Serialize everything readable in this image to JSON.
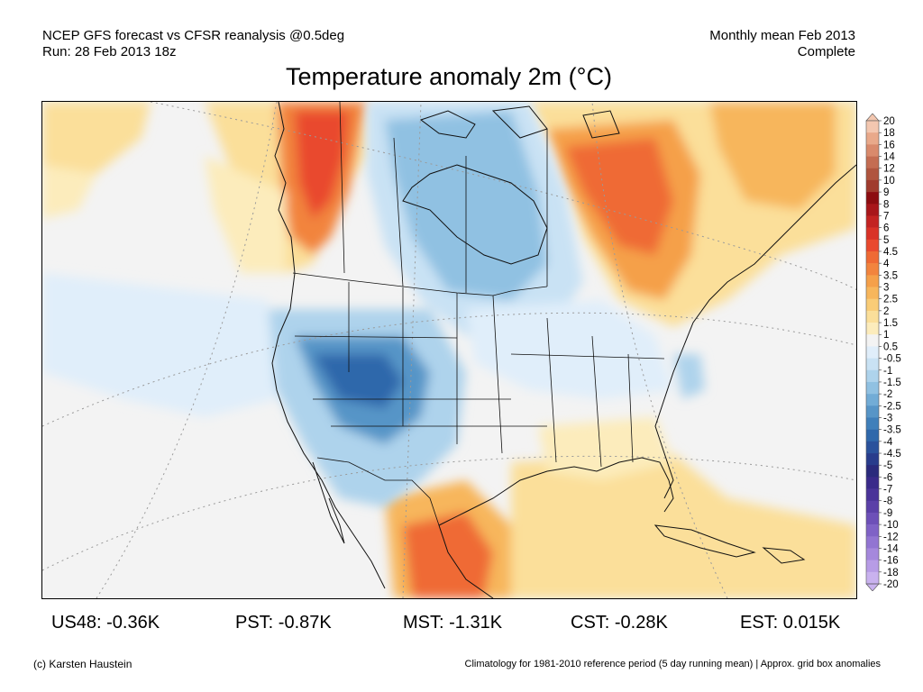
{
  "header": {
    "line1_left": "NCEP GFS forecast vs CFSR reanalysis @0.5deg",
    "line2_left": "Run: 28 Feb 2013 18z",
    "line1_right": "Monthly mean Feb 2013",
    "line2_right": "Complete"
  },
  "title": "Temperature anomaly 2m (°C)",
  "colorbar": {
    "labels": [
      "20",
      "18",
      "16",
      "14",
      "12",
      "10",
      "9",
      "8",
      "7",
      "6",
      "5",
      "4.5",
      "4",
      "3.5",
      "3",
      "2.5",
      "2",
      "1.5",
      "1",
      "0.5",
      "-0.5",
      "-1",
      "-1.5",
      "-2",
      "-2.5",
      "-3",
      "-3.5",
      "-4",
      "-4.5",
      "-5",
      "-6",
      "-7",
      "-8",
      "-9",
      "-10",
      "-12",
      "-14",
      "-16",
      "-18",
      "-20"
    ],
    "colors": [
      "#f3c7b0",
      "#e9a98a",
      "#d98a6c",
      "#c46d52",
      "#b0553e",
      "#a03b2d",
      "#8c0c10",
      "#a8161a",
      "#c32322",
      "#d93227",
      "#e94a2e",
      "#ef6a34",
      "#f2843e",
      "#f5a04a",
      "#f7b65c",
      "#f9cc77",
      "#fbdf9a",
      "#fcecbc",
      "#f3f3f3",
      "#e0eefa",
      "#c9e2f4",
      "#aed3ec",
      "#90c1e2",
      "#72acd6",
      "#5795c7",
      "#3f7fba",
      "#2f68ab",
      "#2a529c",
      "#283c8c",
      "#2a2a7c",
      "#3a2a8a",
      "#4a3399",
      "#5b40a8",
      "#6d50b8",
      "#7f62c6",
      "#9275d2",
      "#a588dc",
      "#b79ce6",
      "#c9b2ef"
    ]
  },
  "stats": [
    {
      "label": "US48: -0.36K"
    },
    {
      "label": "PST: -0.87K"
    },
    {
      "label": "MST: -1.31K"
    },
    {
      "label": "CST: -0.28K"
    },
    {
      "label": "EST: 0.015K"
    }
  ],
  "footer": {
    "copyright": "(c) Karsten Haustein",
    "note": "Climatology for 1981-2010 reference period (5 day running mean) | Approx. grid box anomalies"
  }
}
